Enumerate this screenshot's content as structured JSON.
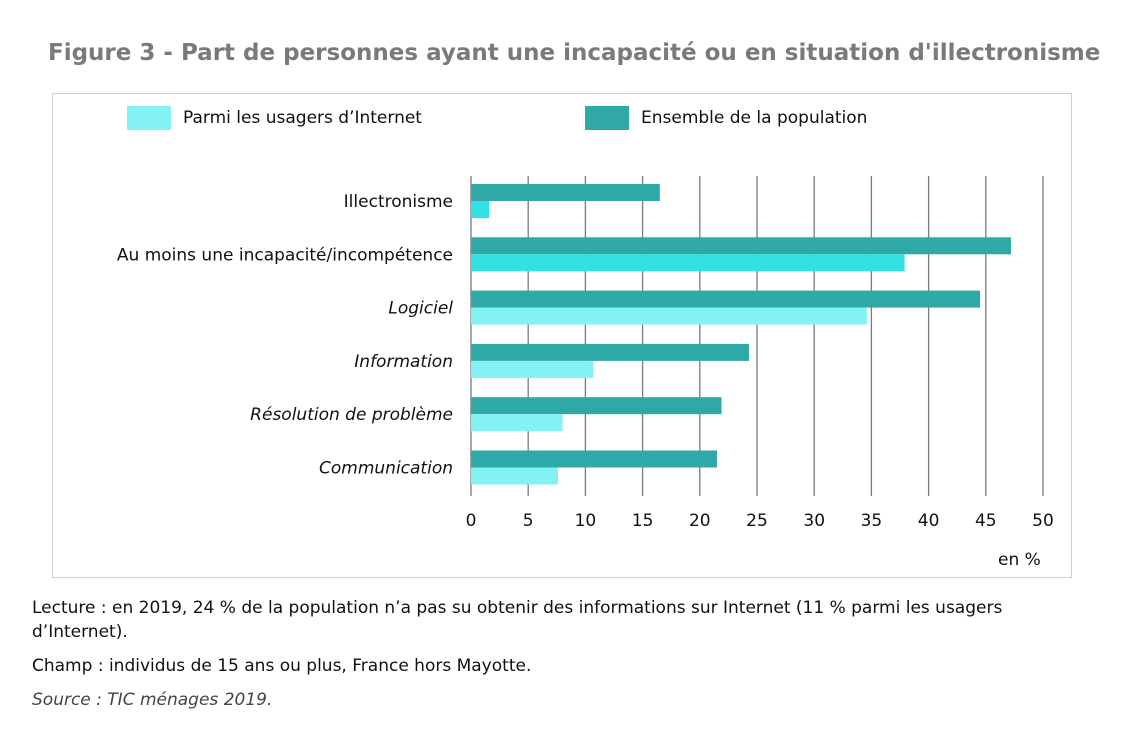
{
  "title": "Figure 3 - Part de personnes ayant une incapacité ou en situation d'illectronisme",
  "colors": {
    "internet_users": "#84f2f4",
    "internet_users_highlight": "#33e0e2",
    "population": "#2ea9a8",
    "grid": "#7a7a7a",
    "border": "#cfcfcf"
  },
  "legend": [
    {
      "label": "Parmi les usagers d’Internet",
      "color": "#84f2f4"
    },
    {
      "label": "Ensemble de la population",
      "color": "#2ea9a8"
    }
  ],
  "chart_data": {
    "type": "bar",
    "orientation": "horizontal",
    "categories": [
      "Illectronisme",
      "Au moins une incapacité/incompétence",
      "Logiciel",
      "Information",
      "Résolution de problème",
      "Communication"
    ],
    "category_italic": [
      false,
      false,
      true,
      true,
      true,
      true
    ],
    "series": [
      {
        "name": "Ensemble de la population",
        "values": [
          16.5,
          47.2,
          44.5,
          24.3,
          21.9,
          21.5
        ]
      },
      {
        "name": "Parmi les usagers d’Internet",
        "values": [
          1.6,
          37.9,
          34.6,
          10.7,
          8.0,
          7.6
        ]
      }
    ],
    "xlim": [
      0,
      50
    ],
    "xticks": [
      0,
      5,
      10,
      15,
      20,
      25,
      30,
      35,
      40,
      45,
      50
    ],
    "xlabel": "en %",
    "grid": true,
    "legend_position": "top"
  },
  "notes": {
    "lecture": "Lecture : en 2019, 24 % de la population n’a pas su obtenir des informations sur Internet (11 % parmi les usagers d’Internet).",
    "champ": "Champ : individus de 15 ans ou plus, France hors Mayotte.",
    "source": "Source : TIC ménages 2019."
  }
}
